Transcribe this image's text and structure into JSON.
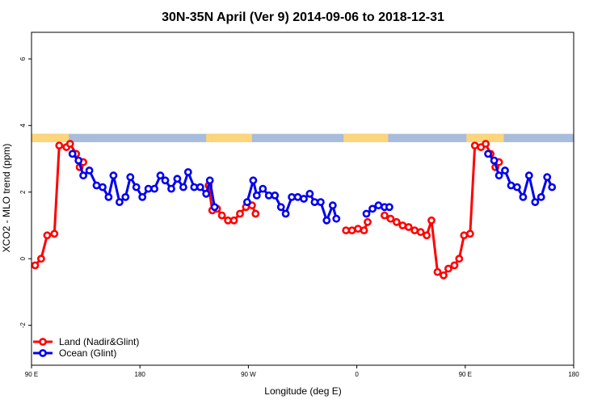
{
  "chart_data": {
    "type": "line",
    "title": "30N-35N April (Ver 9)   2014-09-06 to 2018-12-31",
    "xlabel": "Longitude (deg E)",
    "ylabel": "XCO2 - MLO trend (ppm)",
    "xlim": [
      90,
      540
    ],
    "ylim": [
      -3.2,
      6.8
    ],
    "x_ticks": [
      {
        "value": 90,
        "label": "90 E"
      },
      {
        "value": 180,
        "label": "180"
      },
      {
        "value": 270,
        "label": "90 W"
      },
      {
        "value": 360,
        "label": "0"
      },
      {
        "value": 450,
        "label": "90 E"
      },
      {
        "value": 540,
        "label": "180"
      }
    ],
    "y_ticks": [
      {
        "value": -2,
        "label": "-2"
      },
      {
        "value": 0,
        "label": "0"
      },
      {
        "value": 2,
        "label": "2"
      },
      {
        "value": 4,
        "label": "4"
      },
      {
        "value": 6,
        "label": "6"
      }
    ],
    "legend": {
      "position": "bottom-left",
      "entries": [
        {
          "label": "Land (Nadir&Glint)",
          "color": "#ff0000"
        },
        {
          "label": "Ocean (Glint)",
          "color": "#0000ee"
        }
      ]
    },
    "surface_band": {
      "y_range": [
        3.5,
        3.75
      ],
      "land_color": "#fdd57a",
      "ocean_color": "#a8bcdc",
      "land_segments": [
        [
          90,
          121
        ],
        [
          235,
          240
        ],
        [
          240,
          273
        ],
        [
          349,
          386
        ],
        [
          451,
          482
        ]
      ]
    },
    "series": [
      {
        "name": "Land (Nadir&Glint)",
        "color": "#ff0000",
        "segments": [
          [
            [
              93,
              -0.2
            ],
            [
              98,
              0.0
            ],
            [
              103,
              0.7
            ],
            [
              109,
              0.75
            ],
            [
              113,
              3.4
            ],
            [
              119,
              3.35
            ],
            [
              122,
              3.45
            ],
            [
              127,
              3.15
            ]
          ],
          [
            [
              130,
              2.75
            ],
            [
              133,
              2.9
            ]
          ],
          [
            [
              237,
              2.2
            ],
            [
              240,
              1.45
            ],
            [
              244,
              1.5
            ],
            [
              248,
              1.3
            ],
            [
              253,
              1.15
            ],
            [
              258,
              1.15
            ],
            [
              263,
              1.35
            ],
            [
              268,
              1.55
            ],
            [
              273,
              1.6
            ],
            [
              276,
              1.35
            ]
          ],
          [
            [
              351,
              0.85
            ],
            [
              356,
              0.85
            ],
            [
              361,
              0.9
            ],
            [
              366,
              0.85
            ],
            [
              369,
              1.1
            ]
          ],
          [
            [
              383,
              1.3
            ],
            [
              388,
              1.2
            ],
            [
              393,
              1.1
            ],
            [
              398,
              1.0
            ],
            [
              403,
              0.95
            ],
            [
              408,
              0.85
            ],
            [
              413,
              0.8
            ],
            [
              418,
              0.7
            ],
            [
              422,
              1.15
            ],
            [
              427,
              -0.4
            ],
            [
              432,
              -0.5
            ],
            [
              436,
              -0.3
            ],
            [
              441,
              -0.2
            ],
            [
              445,
              0.0
            ],
            [
              449,
              0.7
            ],
            [
              454,
              0.75
            ],
            [
              458,
              3.4
            ],
            [
              463,
              3.35
            ],
            [
              467,
              3.45
            ],
            [
              471,
              3.15
            ]
          ],
          [
            [
              475,
              2.75
            ],
            [
              478,
              2.9
            ]
          ]
        ]
      },
      {
        "name": "Ocean (Glint)",
        "color": "#0000ee",
        "segments": [
          [
            [
              124,
              3.15
            ],
            [
              129,
              2.95
            ],
            [
              133,
              2.5
            ],
            [
              138,
              2.65
            ],
            [
              144,
              2.2
            ],
            [
              149,
              2.15
            ],
            [
              154,
              1.85
            ],
            [
              158,
              2.5
            ],
            [
              163,
              1.7
            ],
            [
              168,
              1.85
            ],
            [
              172,
              2.45
            ],
            [
              177,
              2.15
            ],
            [
              182,
              1.85
            ],
            [
              187,
              2.1
            ],
            [
              192,
              2.1
            ],
            [
              197,
              2.5
            ],
            [
              201,
              2.35
            ],
            [
              206,
              2.1
            ],
            [
              211,
              2.4
            ],
            [
              216,
              2.15
            ],
            [
              220,
              2.6
            ],
            [
              225,
              2.15
            ],
            [
              230,
              2.15
            ],
            [
              235,
              1.95
            ],
            [
              238,
              2.35
            ],
            [
              242,
              1.55
            ]
          ],
          [
            [
              269,
              1.7
            ],
            [
              274,
              2.35
            ],
            [
              277,
              1.9
            ],
            [
              282,
              2.1
            ],
            [
              287,
              1.9
            ],
            [
              292,
              1.9
            ],
            [
              297,
              1.55
            ],
            [
              301,
              1.35
            ],
            [
              306,
              1.85
            ],
            [
              311,
              1.85
            ],
            [
              316,
              1.8
            ],
            [
              321,
              1.95
            ],
            [
              325,
              1.7
            ],
            [
              330,
              1.7
            ],
            [
              335,
              1.15
            ],
            [
              340,
              1.6
            ],
            [
              343,
              1.2
            ]
          ],
          [
            [
              368,
              1.35
            ],
            [
              373,
              1.5
            ],
            [
              378,
              1.6
            ],
            [
              383,
              1.55
            ],
            [
              387,
              1.55
            ]
          ],
          [
            [
              469,
              3.15
            ],
            [
              474,
              2.95
            ],
            [
              478,
              2.5
            ],
            [
              483,
              2.65
            ],
            [
              488,
              2.2
            ],
            [
              493,
              2.15
            ],
            [
              498,
              1.85
            ],
            [
              503,
              2.5
            ],
            [
              508,
              1.7
            ],
            [
              513,
              1.85
            ],
            [
              518,
              2.45
            ],
            [
              522,
              2.15
            ]
          ]
        ]
      }
    ]
  }
}
